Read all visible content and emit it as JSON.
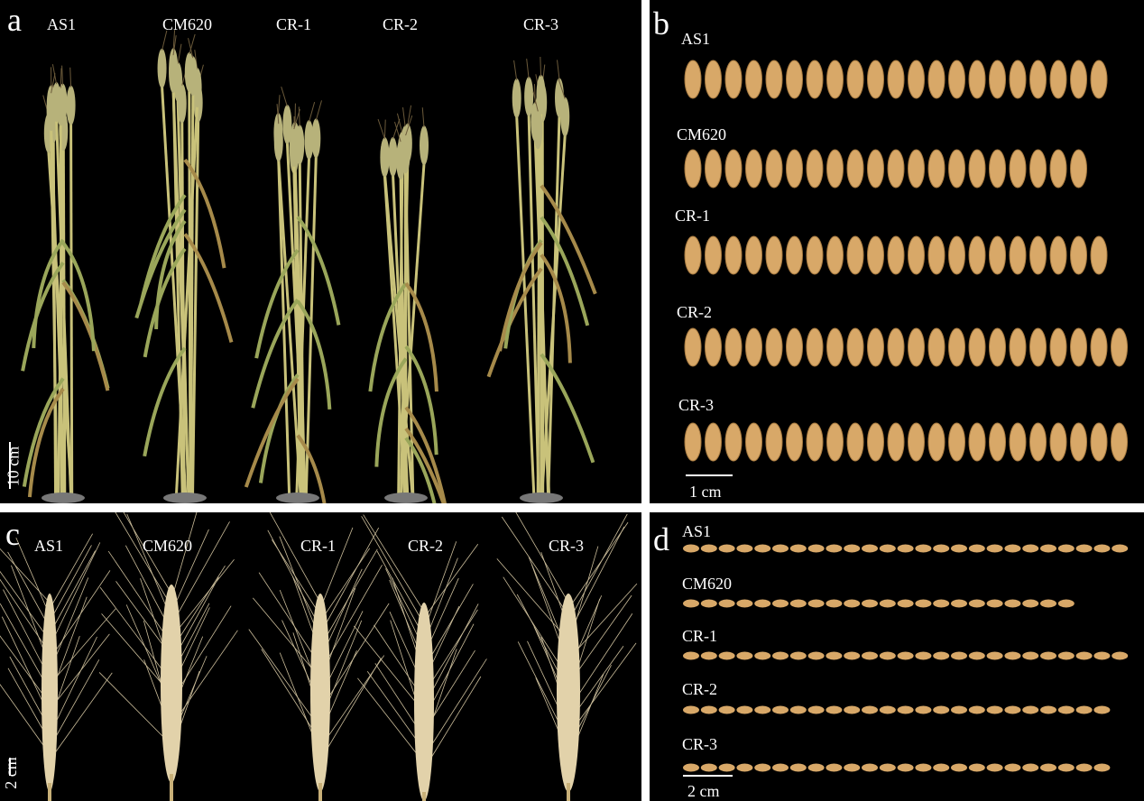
{
  "panels": {
    "a": {
      "letter": "a",
      "labels": [
        "AS1",
        "CM620",
        "CR-1",
        "CR-2",
        "CR-3"
      ],
      "scale": "10 cm"
    },
    "b": {
      "letter": "b",
      "labels": [
        "AS1",
        "CM620",
        "CR-1",
        "CR-2",
        "CR-3"
      ],
      "scale": "1 cm"
    },
    "c": {
      "letter": "c",
      "labels": [
        "AS1",
        "CM620",
        "CR-1",
        "CR-2",
        "CR-3"
      ],
      "scale": "2 cm"
    },
    "d": {
      "letter": "d",
      "labels": [
        "AS1",
        "CM620",
        "CR-1",
        "CR-2",
        "CR-3"
      ],
      "scale": "2 cm"
    }
  },
  "colors": {
    "background": "#000000",
    "grain": "#d8a868",
    "stalk": "#c9c27a",
    "leaf": "#9aa65a",
    "spike": "#e2d2aa"
  }
}
